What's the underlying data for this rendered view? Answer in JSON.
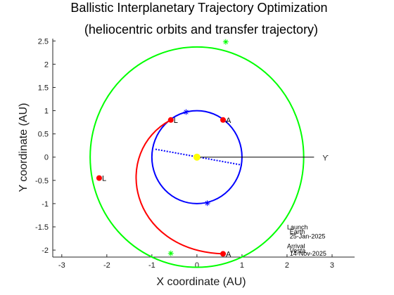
{
  "chart_data": {
    "type": "scatter",
    "title": "Ballistic Interplanetary Trajectory Optimization",
    "subtitle": "(heliocentric orbits and transfer trajectory)",
    "xlabel": "X coordinate (AU)",
    "ylabel": "Y coordinate (AU)",
    "xlim": [
      -3.2,
      3.5
    ],
    "ylim": [
      -2.15,
      2.55
    ],
    "x_ticks": [
      -3,
      -2,
      -1,
      0,
      1,
      2,
      3
    ],
    "y_ticks": [
      -2,
      -1.5,
      -1,
      -0.5,
      0,
      0.5,
      1,
      1.5,
      2,
      2.5
    ],
    "grid": false,
    "aries_symbol": "ϒ",
    "sun": {
      "x": 0,
      "y": 0,
      "color": "#ffff00"
    },
    "earth_orbit": {
      "radius_au": 1.0,
      "color": "#0000ff",
      "star_markers": [
        {
          "x": -0.24,
          "y": 0.97
        },
        {
          "x": 0.23,
          "y": -0.99
        }
      ]
    },
    "vesta_orbit": {
      "center": [
        0,
        0
      ],
      "radius_au": 2.37,
      "color": "#00ff00",
      "star_markers": [
        {
          "x": 0.64,
          "y": 2.48
        },
        {
          "x": -0.58,
          "y": -2.07
        }
      ]
    },
    "transfer_arc": {
      "color": "#ff0000",
      "from": {
        "x": -0.58,
        "y": 0.8
      },
      "to": {
        "x": 0.58,
        "y": -2.08
      }
    },
    "apsides_line": {
      "color": "#0000ff",
      "from": {
        "x": -0.92,
        "y": 0.17
      },
      "to": {
        "x": 1.0,
        "y": -0.17
      }
    },
    "aries_line": {
      "color": "#000000",
      "from": {
        "x": 0,
        "y": 0
      },
      "to": {
        "x": 2.6,
        "y": 0
      }
    },
    "points": [
      {
        "label": "L",
        "x": -0.58,
        "y": 0.8,
        "color": "#ff0000"
      },
      {
        "label": "A",
        "x": 0.58,
        "y": 0.8,
        "color": "#ff0000"
      },
      {
        "label": "L",
        "x": -2.17,
        "y": -0.45,
        "color": "#ff0000"
      },
      {
        "label": "A",
        "x": 0.58,
        "y": -2.08,
        "color": "#ff0000"
      }
    ],
    "annotations": [
      {
        "text": "Launch",
        "x": 2.0,
        "y": -1.55
      },
      {
        "text": "Earth",
        "x": 2.06,
        "y": -1.65
      },
      {
        "text": "25-Jan-2025",
        "x": 2.06,
        "y": -1.75
      },
      {
        "text": "Arrival",
        "x": 2.0,
        "y": -1.96
      },
      {
        "text": "Vesta",
        "x": 2.06,
        "y": -2.06
      },
      {
        "text": "14-Nov-2025",
        "x": 2.06,
        "y": -2.12
      }
    ]
  }
}
